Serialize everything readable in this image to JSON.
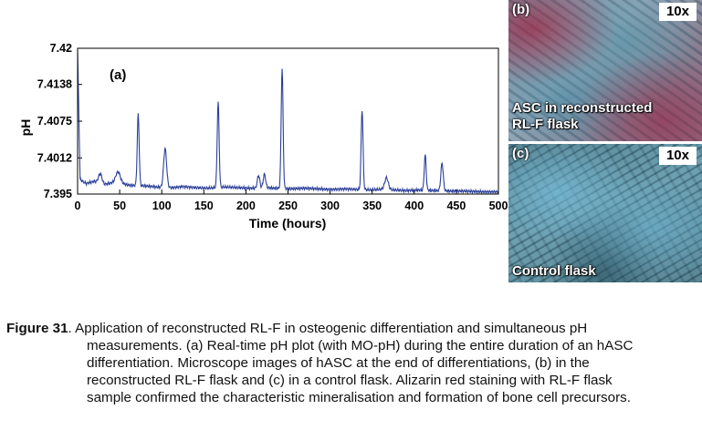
{
  "chart_data": {
    "type": "line",
    "panel_label": "(a)",
    "xlabel": "Time (hours)",
    "ylabel": "pH",
    "xlim": [
      0,
      500
    ],
    "ylim": [
      7.395,
      7.42
    ],
    "xticks": [
      "0",
      "50",
      "100",
      "150",
      "200",
      "250",
      "300",
      "350",
      "400",
      "450",
      "500"
    ],
    "yticks": [
      "7.395",
      "7.4012",
      "7.4075",
      "7.4138",
      "7.42"
    ],
    "grid": false,
    "series_color": "#2b3f9a",
    "baseline": [
      [
        0,
        7.4195
      ],
      [
        3,
        7.3975
      ],
      [
        10,
        7.3968
      ],
      [
        20,
        7.3972
      ],
      [
        30,
        7.3966
      ],
      [
        40,
        7.3969
      ],
      [
        55,
        7.3967
      ],
      [
        62,
        7.3965
      ],
      [
        80,
        7.3964
      ],
      [
        95,
        7.3962
      ],
      [
        112,
        7.3961
      ],
      [
        125,
        7.3963
      ],
      [
        140,
        7.3961
      ],
      [
        155,
        7.396
      ],
      [
        175,
        7.3962
      ],
      [
        190,
        7.3961
      ],
      [
        205,
        7.396
      ],
      [
        225,
        7.3961
      ],
      [
        235,
        7.396
      ],
      [
        255,
        7.3959
      ],
      [
        270,
        7.396
      ],
      [
        285,
        7.3959
      ],
      [
        300,
        7.3958
      ],
      [
        320,
        7.3959
      ],
      [
        330,
        7.3958
      ],
      [
        348,
        7.3957
      ],
      [
        360,
        7.3958
      ],
      [
        375,
        7.3957
      ],
      [
        390,
        7.3956
      ],
      [
        405,
        7.3957
      ],
      [
        425,
        7.3956
      ],
      [
        445,
        7.3955
      ],
      [
        460,
        7.3955
      ],
      [
        480,
        7.3954
      ],
      [
        500,
        7.3954
      ]
    ],
    "peaks": [
      {
        "x": 27,
        "y": 7.3985,
        "w": 3
      },
      {
        "x": 48,
        "y": 7.3988,
        "w": 4
      },
      {
        "x": 72,
        "y": 7.4087,
        "w": 1.6
      },
      {
        "x": 104,
        "y": 7.4028,
        "w": 2.5
      },
      {
        "x": 167,
        "y": 7.4108,
        "w": 1.6
      },
      {
        "x": 215,
        "y": 7.3982,
        "w": 2
      },
      {
        "x": 222,
        "y": 7.3984,
        "w": 2
      },
      {
        "x": 243,
        "y": 7.4166,
        "w": 1.6
      },
      {
        "x": 338,
        "y": 7.4095,
        "w": 1.6
      },
      {
        "x": 367,
        "y": 7.3978,
        "w": 3
      },
      {
        "x": 413,
        "y": 7.4017,
        "w": 1.6
      },
      {
        "x": 433,
        "y": 7.4003,
        "w": 2
      }
    ]
  },
  "micrographs": {
    "b": {
      "letter": "(b)",
      "magnification": "10x",
      "caption_lines": [
        "ASC in reconstructed",
        "RL-F flask"
      ]
    },
    "c": {
      "letter": "(c)",
      "magnification": "10x",
      "caption_lines": [
        "Control flask"
      ]
    }
  },
  "caption": {
    "label": "Figure 31",
    "first_line": ". Application of reconstructed RL-F in osteogenic differentiation and simultaneous pH",
    "lines": [
      "measurements. (a) Real-time pH plot (with MO-pH) during the entire duration of an hASC",
      "differentiation. Microscope images of hASC at the end of differentiations, (b) in the",
      "reconstructed RL-F flask and (c) in a control flask. Alizarin red staining with RL-F flask",
      "sample confirmed the characteristic mineralisation and formation of bone cell precursors."
    ]
  }
}
